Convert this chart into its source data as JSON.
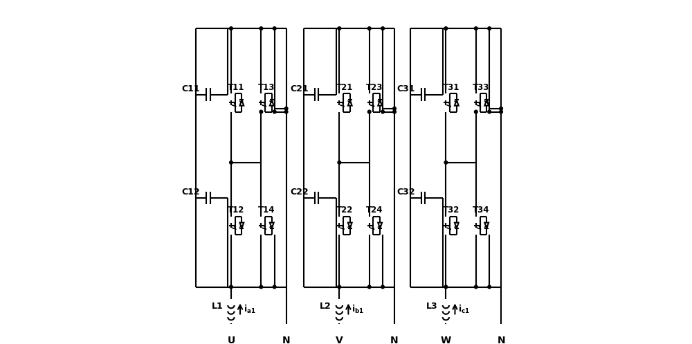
{
  "bg_color": "#ffffff",
  "line_color": "#000000",
  "lw": 1.5,
  "phases": [
    {
      "ox": 0.03,
      "labels": {
        "cap1": "C11",
        "cap2": "C12",
        "t1": "T11",
        "t2": "T12",
        "t3": "T13",
        "t4": "T14",
        "ind": "L1",
        "curr": "i_{a1}",
        "phase": "U"
      }
    },
    {
      "ox": 0.365,
      "labels": {
        "cap1": "C21",
        "cap2": "C22",
        "t1": "T21",
        "t2": "T22",
        "t3": "T23",
        "t4": "T24",
        "ind": "L2",
        "curr": "i_{b1}",
        "phase": "V"
      }
    },
    {
      "ox": 0.695,
      "labels": {
        "cap1": "C31",
        "cap2": "C32",
        "t1": "T31",
        "t2": "T32",
        "t3": "T33",
        "t4": "T34",
        "ind": "L3",
        "curr": "i_{c1}",
        "phase": "W"
      }
    }
  ]
}
